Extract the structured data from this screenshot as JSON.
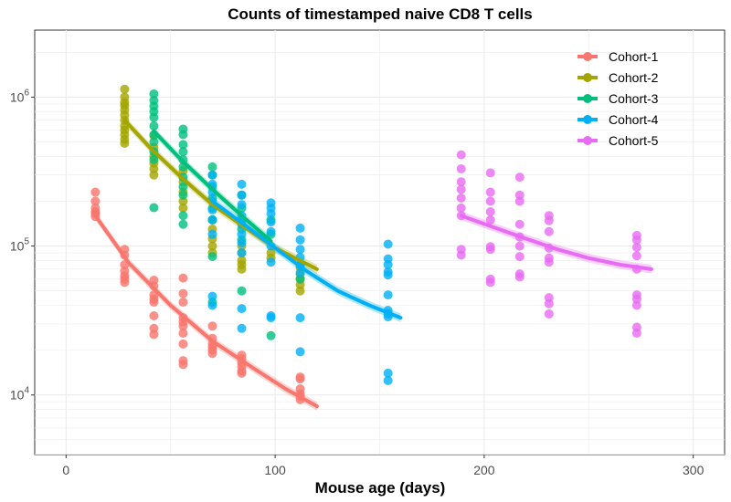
{
  "chart_data": {
    "type": "scatter",
    "title": "Counts of timestamped naive CD8 T cells",
    "xlabel": "Mouse age (days)",
    "ylabel": "",
    "xlim": [
      -15,
      315
    ],
    "ylim_log10": [
      3.6,
      6.45
    ],
    "y_scale": "log10",
    "x_ticks": [
      0,
      100,
      200,
      300
    ],
    "x_tick_labels": [
      "0",
      "100",
      "200",
      "300"
    ],
    "y_ticks": [
      4,
      5,
      6
    ],
    "y_tick_labels": [
      {
        "base": "10",
        "exp": "4"
      },
      {
        "base": "10",
        "exp": "5"
      },
      {
        "base": "10",
        "exp": "6"
      }
    ],
    "grid": true,
    "legend_position": "top-right",
    "series": [
      {
        "name": "Cohort-1",
        "color": "#F8766D",
        "points": [
          [
            14,
            230000
          ],
          [
            14,
            200000
          ],
          [
            14,
            180000
          ],
          [
            14,
            170000
          ],
          [
            14,
            165000
          ],
          [
            14,
            158000
          ],
          [
            28,
            95000
          ],
          [
            28,
            87000
          ],
          [
            28,
            75000
          ],
          [
            28,
            68000
          ],
          [
            28,
            63000
          ],
          [
            28,
            60000
          ],
          [
            28,
            57000
          ],
          [
            42,
            59000
          ],
          [
            42,
            54000
          ],
          [
            42,
            47000
          ],
          [
            42,
            44000
          ],
          [
            42,
            42000
          ],
          [
            42,
            34000
          ],
          [
            42,
            28000
          ],
          [
            42,
            25500
          ],
          [
            56,
            61000
          ],
          [
            56,
            48000
          ],
          [
            56,
            42000
          ],
          [
            56,
            33000
          ],
          [
            56,
            31000
          ],
          [
            56,
            29000
          ],
          [
            56,
            26000
          ],
          [
            56,
            22000
          ],
          [
            56,
            17000
          ],
          [
            56,
            16000
          ],
          [
            70,
            29000
          ],
          [
            70,
            24000
          ],
          [
            70,
            22000
          ],
          [
            70,
            21000
          ],
          [
            70,
            20000
          ],
          [
            70,
            19000
          ],
          [
            84,
            18500
          ],
          [
            84,
            17500
          ],
          [
            84,
            16500
          ],
          [
            84,
            15500
          ],
          [
            84,
            14500
          ],
          [
            84,
            14000
          ],
          [
            112,
            13200
          ],
          [
            112,
            12800
          ],
          [
            112,
            11000
          ],
          [
            112,
            10200
          ],
          [
            112,
            9800
          ],
          [
            112,
            9300
          ]
        ],
        "trend": [
          [
            14,
            160000
          ],
          [
            30,
            77000
          ],
          [
            50,
            40000
          ],
          [
            70,
            23000
          ],
          [
            90,
            15000
          ],
          [
            105,
            11000
          ],
          [
            120,
            8400
          ]
        ]
      },
      {
        "name": "Cohort-2",
        "color": "#A3A500",
        "points": [
          [
            28,
            1130000
          ],
          [
            28,
            1000000
          ],
          [
            28,
            920000
          ],
          [
            28,
            880000
          ],
          [
            28,
            820000
          ],
          [
            28,
            760000
          ],
          [
            28,
            700000
          ],
          [
            28,
            640000
          ],
          [
            28,
            600000
          ],
          [
            28,
            560000
          ],
          [
            28,
            520000
          ],
          [
            28,
            490000
          ],
          [
            42,
            550000
          ],
          [
            42,
            460000
          ],
          [
            42,
            400000
          ],
          [
            42,
            360000
          ],
          [
            42,
            330000
          ],
          [
            42,
            300000
          ],
          [
            56,
            320000
          ],
          [
            56,
            270000
          ],
          [
            56,
            230000
          ],
          [
            56,
            200000
          ],
          [
            56,
            180000
          ],
          [
            70,
            150000
          ],
          [
            70,
            130000
          ],
          [
            70,
            112000
          ],
          [
            70,
            100000
          ],
          [
            70,
            90000
          ],
          [
            84,
            100000
          ],
          [
            84,
            90000
          ],
          [
            84,
            80000
          ],
          [
            84,
            75000
          ],
          [
            84,
            70000
          ],
          [
            98,
            90000
          ],
          [
            98,
            83000
          ],
          [
            112,
            72000
          ],
          [
            112,
            65000
          ],
          [
            112,
            60000
          ],
          [
            112,
            55000
          ],
          [
            112,
            50000
          ]
        ],
        "trend": [
          [
            28,
            700000
          ],
          [
            40,
            460000
          ],
          [
            55,
            290000
          ],
          [
            70,
            190000
          ],
          [
            85,
            135000
          ],
          [
            100,
            97000
          ],
          [
            120,
            70000
          ]
        ]
      },
      {
        "name": "Cohort-3",
        "color": "#00BF7D",
        "points": [
          [
            42,
            1050000
          ],
          [
            42,
            950000
          ],
          [
            42,
            870000
          ],
          [
            42,
            800000
          ],
          [
            42,
            730000
          ],
          [
            42,
            640000
          ],
          [
            42,
            560000
          ],
          [
            42,
            500000
          ],
          [
            42,
            430000
          ],
          [
            42,
            380000
          ],
          [
            42,
            181000
          ],
          [
            56,
            610000
          ],
          [
            56,
            560000
          ],
          [
            56,
            480000
          ],
          [
            56,
            430000
          ],
          [
            56,
            380000
          ],
          [
            56,
            340000
          ],
          [
            56,
            290000
          ],
          [
            56,
            250000
          ],
          [
            56,
            220000
          ],
          [
            56,
            160000
          ],
          [
            56,
            140000
          ],
          [
            70,
            340000
          ],
          [
            70,
            300000
          ],
          [
            70,
            250000
          ],
          [
            70,
            210000
          ],
          [
            70,
            180000
          ],
          [
            70,
            150000
          ],
          [
            70,
            85000
          ],
          [
            70,
            42000
          ],
          [
            84,
            220000
          ],
          [
            84,
            180000
          ],
          [
            84,
            150000
          ],
          [
            84,
            130000
          ],
          [
            84,
            110000
          ],
          [
            84,
            50000
          ],
          [
            98,
            150000
          ],
          [
            98,
            120000
          ],
          [
            98,
            25000
          ],
          [
            112,
            75000
          ],
          [
            112,
            60000
          ]
        ],
        "trend": [
          [
            42,
            590000
          ],
          [
            55,
            380000
          ],
          [
            70,
            240000
          ],
          [
            84,
            160000
          ],
          [
            98,
            108000
          ]
        ]
      },
      {
        "name": "Cohort-4",
        "color": "#00B0F6",
        "points": [
          [
            70,
            300000
          ],
          [
            70,
            260000
          ],
          [
            70,
            230000
          ],
          [
            70,
            200000
          ],
          [
            70,
            175000
          ],
          [
            70,
            150000
          ],
          [
            70,
            120000
          ],
          [
            70,
            46000
          ],
          [
            70,
            40000
          ],
          [
            84,
            260000
          ],
          [
            84,
            220000
          ],
          [
            84,
            190000
          ],
          [
            84,
            160000
          ],
          [
            84,
            140000
          ],
          [
            84,
            120000
          ],
          [
            84,
            105000
          ],
          [
            84,
            90000
          ],
          [
            84,
            38000
          ],
          [
            84,
            28000
          ],
          [
            98,
            195000
          ],
          [
            98,
            180000
          ],
          [
            98,
            165000
          ],
          [
            98,
            145000
          ],
          [
            98,
            125000
          ],
          [
            98,
            100000
          ],
          [
            98,
            78000
          ],
          [
            98,
            34000
          ],
          [
            98,
            33000
          ],
          [
            112,
            132000
          ],
          [
            112,
            110000
          ],
          [
            112,
            95000
          ],
          [
            112,
            84000
          ],
          [
            112,
            74000
          ],
          [
            112,
            66000
          ],
          [
            112,
            33000
          ],
          [
            112,
            19500
          ],
          [
            154,
            103000
          ],
          [
            154,
            82000
          ],
          [
            154,
            75000
          ],
          [
            154,
            67000
          ],
          [
            154,
            64000
          ],
          [
            154,
            47000
          ],
          [
            154,
            37000
          ],
          [
            154,
            35000
          ],
          [
            154,
            33500
          ],
          [
            154,
            14000
          ],
          [
            154,
            12500
          ]
        ],
        "trend": [
          [
            70,
            200000
          ],
          [
            85,
            140000
          ],
          [
            100,
            97000
          ],
          [
            115,
            68000
          ],
          [
            130,
            50000
          ],
          [
            145,
            40000
          ],
          [
            160,
            33000
          ]
        ]
      },
      {
        "name": "Cohort-5",
        "color": "#E76BF3",
        "points": [
          [
            189,
            410000
          ],
          [
            189,
            330000
          ],
          [
            189,
            270000
          ],
          [
            189,
            240000
          ],
          [
            189,
            210000
          ],
          [
            189,
            180000
          ],
          [
            189,
            160000
          ],
          [
            189,
            95000
          ],
          [
            189,
            87000
          ],
          [
            203,
            310000
          ],
          [
            203,
            230000
          ],
          [
            203,
            200000
          ],
          [
            203,
            170000
          ],
          [
            203,
            150000
          ],
          [
            203,
            99000
          ],
          [
            203,
            95000
          ],
          [
            203,
            60000
          ],
          [
            203,
            57000
          ],
          [
            217,
            290000
          ],
          [
            217,
            220000
          ],
          [
            217,
            200000
          ],
          [
            217,
            140000
          ],
          [
            217,
            115000
          ],
          [
            217,
            100000
          ],
          [
            217,
            85000
          ],
          [
            217,
            65000
          ],
          [
            217,
            62000
          ],
          [
            231,
            160000
          ],
          [
            231,
            148000
          ],
          [
            231,
            125000
          ],
          [
            231,
            97000
          ],
          [
            231,
            83000
          ],
          [
            231,
            78000
          ],
          [
            231,
            45000
          ],
          [
            231,
            41000
          ],
          [
            231,
            35000
          ],
          [
            273,
            118000
          ],
          [
            273,
            110000
          ],
          [
            273,
            98000
          ],
          [
            273,
            86000
          ],
          [
            273,
            70000
          ],
          [
            273,
            47000
          ],
          [
            273,
            44000
          ],
          [
            273,
            40000
          ],
          [
            273,
            28500
          ],
          [
            273,
            26000
          ]
        ],
        "trend": [
          [
            189,
            160000
          ],
          [
            205,
            133000
          ],
          [
            220,
            112000
          ],
          [
            235,
            95000
          ],
          [
            250,
            83000
          ],
          [
            265,
            75000
          ],
          [
            280,
            70000
          ]
        ]
      }
    ]
  }
}
